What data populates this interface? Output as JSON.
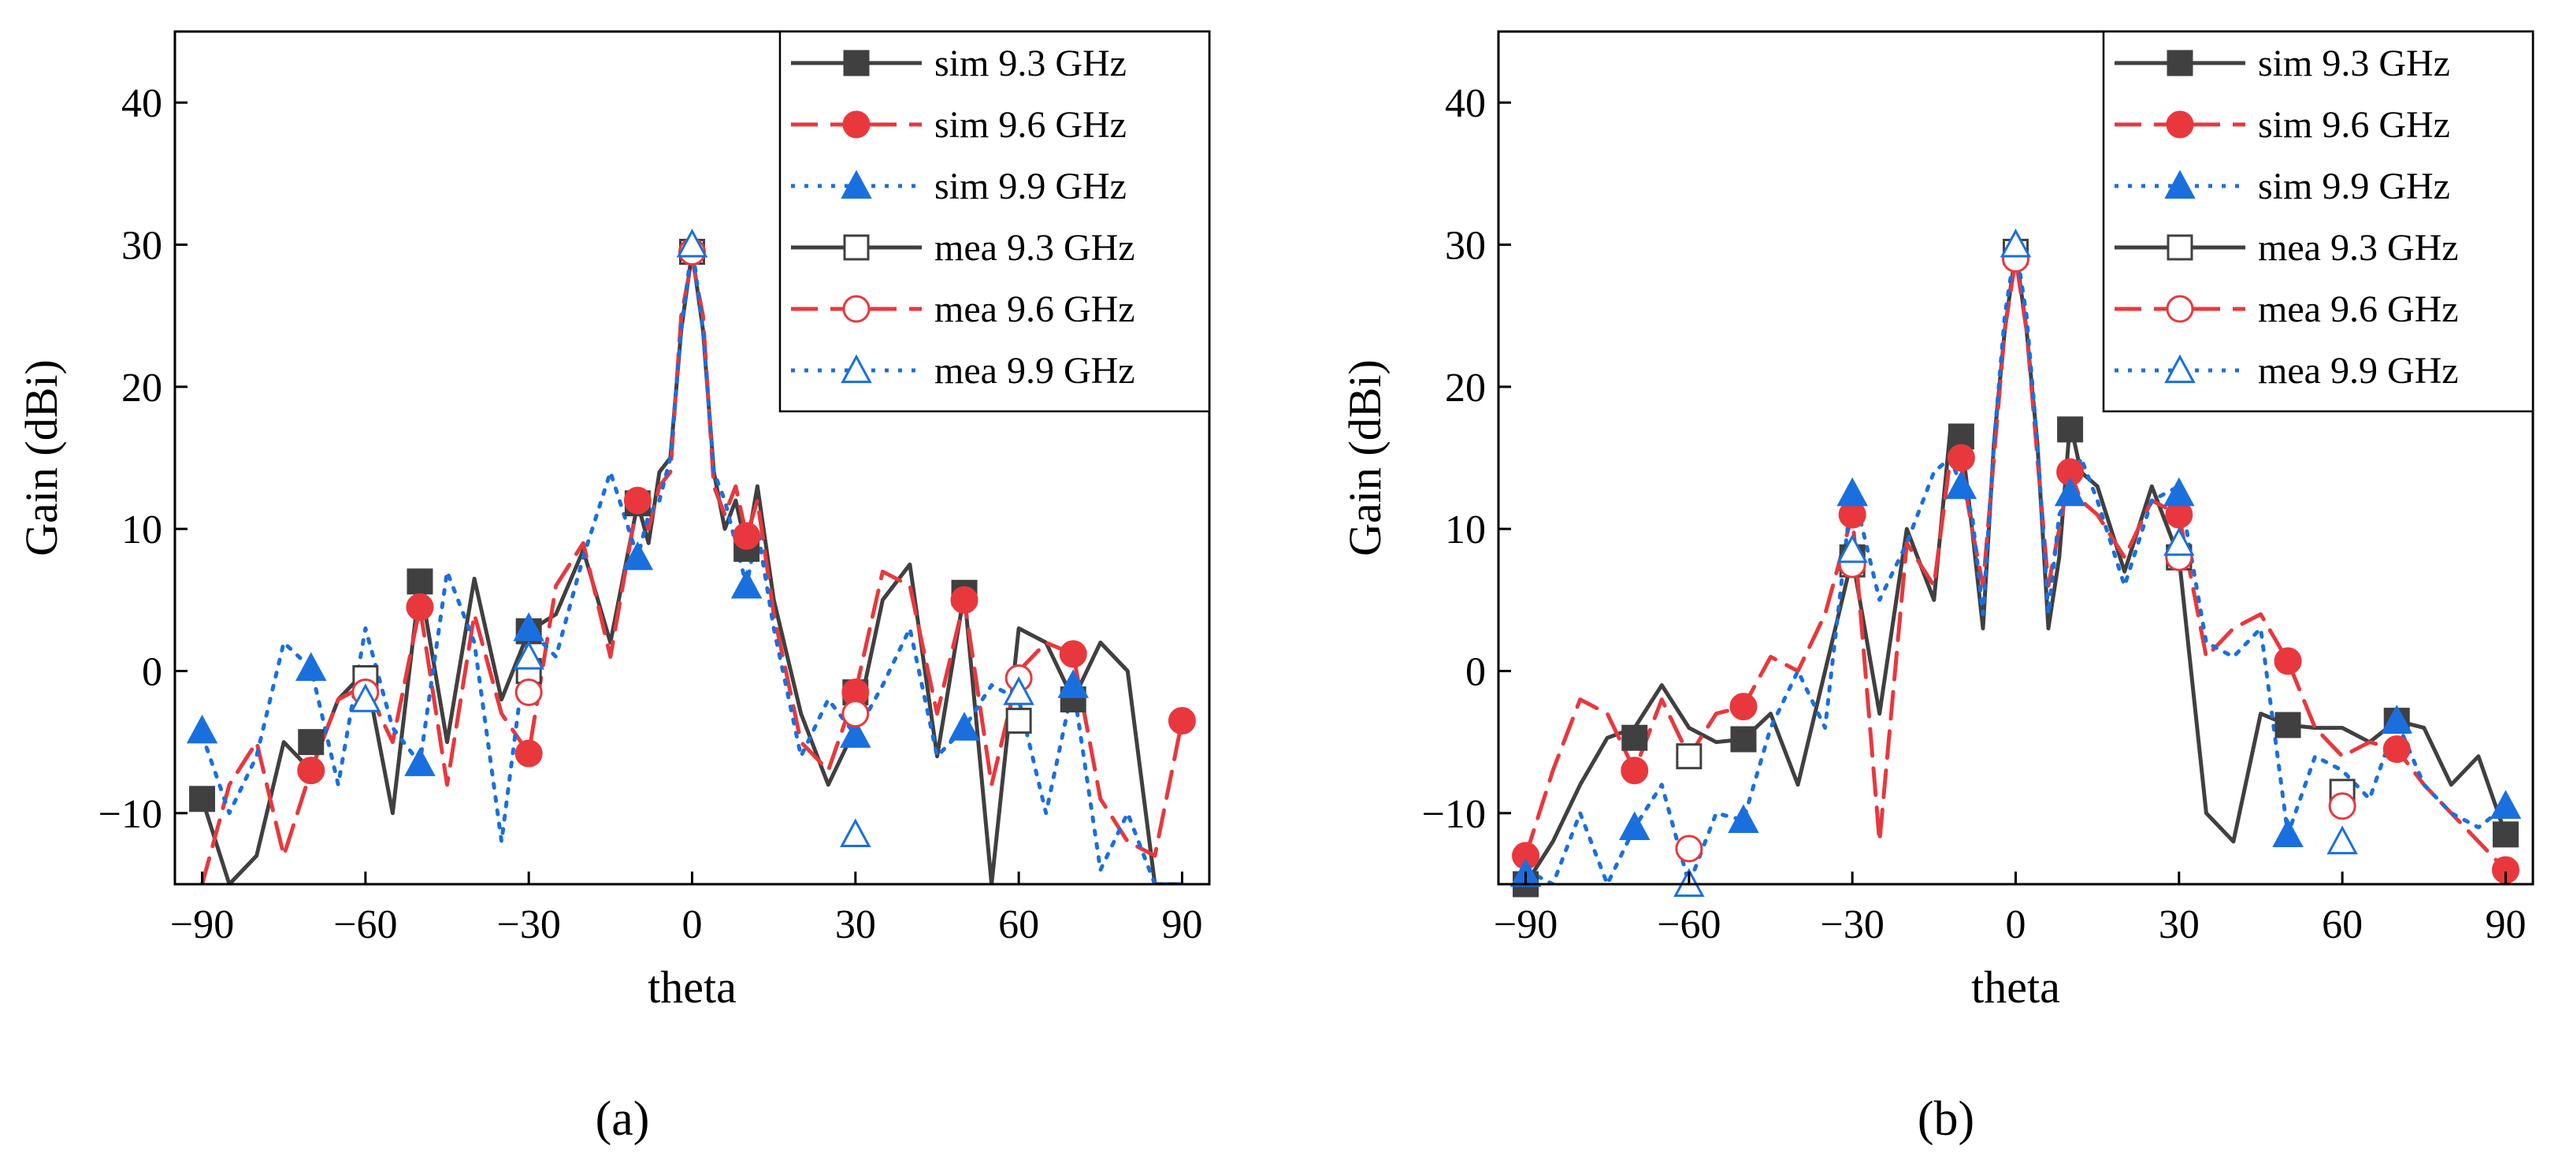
{
  "chart_data": [
    {
      "type": "line",
      "panel_label": "a",
      "xlabel": "theta",
      "ylabel": "Gain (dBi)",
      "xlim": [
        -95,
        95
      ],
      "ylim": [
        -15,
        45
      ],
      "xticks": [
        -90,
        -60,
        -30,
        0,
        30,
        60,
        90
      ],
      "yticks": [
        -10,
        0,
        10,
        20,
        30,
        40
      ],
      "legend_position": "top-right",
      "series": [
        {
          "name": "sim 9.3 GHz",
          "color": "#404040",
          "dash": "solid",
          "marker": "filled-square",
          "x": [
            -90,
            -85,
            -80,
            -75,
            -70,
            -65,
            -60,
            -55,
            -50,
            -45,
            -40,
            -35,
            -30,
            -25,
            -20,
            -15,
            -10,
            -8,
            -6,
            -4,
            -2,
            0,
            2,
            4,
            6,
            8,
            10,
            12,
            15,
            20,
            25,
            30,
            35,
            40,
            45,
            50,
            55,
            60,
            65,
            70,
            75,
            80,
            85,
            90
          ],
          "y": [
            -9,
            -15,
            -13,
            -5,
            -7,
            -2,
            0,
            -10,
            6.3,
            -5,
            6.5,
            -2,
            2.8,
            4,
            8.5,
            2,
            11.8,
            9,
            14,
            15,
            24,
            29.5,
            24,
            14,
            10,
            12,
            8.6,
            13,
            5,
            -3,
            -8,
            -4,
            5,
            7.5,
            -6,
            5.5,
            -15,
            3,
            2,
            -2,
            2,
            0,
            -15,
            -15
          ],
          "markers_x": [
            -90,
            -70,
            -50,
            -30,
            -10,
            10,
            30,
            50,
            70
          ],
          "markers_y": [
            -9,
            -5,
            6.3,
            2.8,
            11.8,
            8.6,
            -1.5,
            5.5,
            -2
          ]
        },
        {
          "name": "sim 9.6 GHz",
          "color": "#e8383d",
          "dash": "dashed",
          "marker": "filled-circle",
          "x": [
            -90,
            -85,
            -80,
            -75,
            -70,
            -65,
            -60,
            -55,
            -50,
            -45,
            -40,
            -35,
            -30,
            -25,
            -20,
            -15,
            -10,
            -8,
            -6,
            -4,
            -2,
            0,
            2,
            4,
            6,
            8,
            10,
            12,
            15,
            20,
            25,
            30,
            35,
            40,
            45,
            50,
            55,
            60,
            65,
            70,
            75,
            80,
            85,
            90
          ],
          "y": [
            -15,
            -8,
            -5,
            -13,
            -7,
            -2,
            -1,
            -5,
            4.5,
            -8,
            4,
            -3,
            -5.8,
            6,
            9,
            1,
            12,
            10,
            13,
            14,
            25,
            29,
            25,
            13,
            11,
            13,
            9.5,
            12,
            4,
            -5,
            -7,
            -1.5,
            7,
            6,
            -3,
            5,
            -8,
            0,
            2,
            1.2,
            -9,
            -12,
            -13,
            -3.5
          ],
          "markers_x": [
            -70,
            -50,
            -30,
            -10,
            10,
            30,
            50,
            70,
            90
          ],
          "markers_y": [
            -7,
            4.5,
            -5.8,
            12,
            9.5,
            -1.5,
            5,
            1.2,
            -3.5
          ]
        },
        {
          "name": "sim 9.9 GHz",
          "color": "#1a6fdf",
          "dash": "dotted",
          "marker": "filled-triangle",
          "x": [
            -90,
            -85,
            -80,
            -75,
            -70,
            -65,
            -60,
            -55,
            -50,
            -45,
            -40,
            -35,
            -30,
            -25,
            -20,
            -15,
            -10,
            -8,
            -6,
            -4,
            -2,
            0,
            2,
            4,
            6,
            8,
            10,
            12,
            15,
            20,
            25,
            30,
            35,
            40,
            45,
            50,
            55,
            60,
            65,
            70,
            75,
            80,
            85,
            90
          ],
          "y": [
            -4.5,
            -10,
            -6,
            2,
            0.2,
            -8,
            3,
            -4,
            -6.5,
            7,
            2,
            -12,
            3,
            1,
            8,
            14,
            8,
            11,
            12,
            15,
            24,
            30,
            24,
            14,
            12,
            9,
            6,
            10,
            3,
            -6,
            -2,
            -4.5,
            -1,
            3,
            -6,
            -4,
            -1,
            -2,
            -10,
            -1,
            -14,
            -10,
            -15,
            -15
          ],
          "markers_x": [
            -90,
            -70,
            -50,
            -30,
            -10,
            10,
            30,
            50,
            70
          ],
          "markers_y": [
            -4.2,
            0.2,
            -6.5,
            3,
            8,
            6,
            -4.5,
            -4,
            -1
          ]
        },
        {
          "name": "mea 9.3 GHz",
          "color": "#404040",
          "dash": "solid",
          "marker": "open-square",
          "x": [],
          "y": [],
          "markers_x": [
            -60,
            -30,
            0,
            60
          ],
          "markers_y": [
            -0.5,
            0,
            29.5,
            -3.5
          ]
        },
        {
          "name": "mea 9.6 GHz",
          "color": "#e8383d",
          "dash": "dashed",
          "marker": "open-circle",
          "x": [],
          "y": [],
          "markers_x": [
            -60,
            -30,
            0,
            30,
            60
          ],
          "markers_y": [
            -1.5,
            -1.5,
            29.5,
            -3,
            -0.5
          ]
        },
        {
          "name": "mea 9.9 GHz",
          "color": "#1a6fdf",
          "dash": "dotted",
          "marker": "open-triangle",
          "x": [],
          "y": [],
          "markers_x": [
            -60,
            -30,
            0,
            30,
            60
          ],
          "markers_y": [
            -2,
            1,
            30,
            -11.5,
            -1.5
          ]
        }
      ]
    },
    {
      "type": "line",
      "panel_label": "b",
      "xlabel": "theta",
      "ylabel": "Gain (dBi)",
      "xlim": [
        -95,
        95
      ],
      "ylim": [
        -15,
        45
      ],
      "xticks": [
        -90,
        -60,
        -30,
        0,
        30,
        60,
        90
      ],
      "yticks": [
        -10,
        0,
        10,
        20,
        30,
        40
      ],
      "legend_position": "top-right",
      "series": [
        {
          "name": "sim 9.3 GHz",
          "color": "#404040",
          "dash": "solid",
          "marker": "filled-square",
          "x": [
            -90,
            -85,
            -80,
            -75,
            -70,
            -65,
            -60,
            -55,
            -50,
            -45,
            -40,
            -35,
            -30,
            -25,
            -20,
            -15,
            -12,
            -10,
            -8,
            -6,
            -4,
            -2,
            0,
            2,
            4,
            6,
            8,
            10,
            12,
            15,
            20,
            25,
            30,
            35,
            40,
            45,
            50,
            55,
            60,
            65,
            70,
            75,
            80,
            85,
            90
          ],
          "y": [
            -15,
            -12,
            -8,
            -4.7,
            -4,
            -1,
            -4,
            -5,
            -4.8,
            -3,
            -8,
            0,
            8,
            -3,
            10,
            5,
            17,
            16.5,
            10,
            3,
            16,
            24,
            29.5,
            24,
            16,
            3,
            8,
            17.5,
            14,
            13,
            7,
            13,
            8,
            -10,
            -12,
            -3,
            -3.8,
            -4,
            -4,
            -5,
            -3.5,
            -4,
            -8,
            -6,
            -11.5
          ],
          "markers_x": [
            -90,
            -70,
            -50,
            -30,
            -10,
            10,
            30,
            50,
            70,
            90
          ],
          "markers_y": [
            -15,
            -4.7,
            -4.8,
            8,
            16.5,
            17,
            8,
            -3.8,
            -3.5,
            -11.5
          ]
        },
        {
          "name": "sim 9.6 GHz",
          "color": "#e8383d",
          "dash": "dashed",
          "marker": "filled-circle",
          "x": [
            -90,
            -85,
            -80,
            -75,
            -70,
            -65,
            -60,
            -55,
            -50,
            -45,
            -40,
            -35,
            -30,
            -25,
            -20,
            -15,
            -12,
            -10,
            -8,
            -6,
            -4,
            -2,
            0,
            2,
            4,
            6,
            8,
            10,
            12,
            15,
            20,
            25,
            30,
            35,
            40,
            45,
            50,
            55,
            60,
            65,
            70,
            75,
            80,
            85,
            90
          ],
          "y": [
            -13,
            -7,
            -2,
            -3,
            -7,
            -2,
            -6,
            -3,
            -2.5,
            1,
            0,
            4,
            11,
            -12,
            9,
            6,
            15,
            14.5,
            10,
            6,
            15,
            24,
            29,
            24,
            15,
            6,
            10,
            14,
            12,
            11,
            8,
            12,
            11,
            1,
            3,
            4,
            0.7,
            -4,
            -6,
            -5,
            -5.5,
            -8,
            -10,
            -12,
            -14
          ],
          "markers_x": [
            -90,
            -70,
            -50,
            -30,
            -10,
            10,
            30,
            50,
            70,
            90
          ],
          "markers_y": [
            -13,
            -7,
            -2.5,
            11,
            15,
            14,
            11,
            0.7,
            -5.5,
            -14
          ]
        },
        {
          "name": "sim 9.9 GHz",
          "color": "#1a6fdf",
          "dash": "dotted",
          "marker": "filled-triangle",
          "x": [
            -90,
            -85,
            -80,
            -75,
            -70,
            -65,
            -60,
            -55,
            -50,
            -45,
            -40,
            -35,
            -30,
            -25,
            -20,
            -15,
            -12,
            -10,
            -8,
            -6,
            -4,
            -2,
            0,
            2,
            4,
            6,
            8,
            10,
            12,
            15,
            20,
            25,
            30,
            35,
            40,
            45,
            50,
            55,
            60,
            65,
            70,
            75,
            80,
            85,
            90
          ],
          "y": [
            -14,
            -15,
            -10,
            -15,
            -11,
            -8,
            -15,
            -10,
            -10.5,
            -4,
            0,
            -4,
            13,
            5,
            9,
            14,
            15,
            13,
            11,
            4,
            16,
            25,
            30,
            25,
            16,
            4,
            11,
            12.5,
            15,
            12,
            6,
            12,
            13,
            2,
            1,
            3,
            -11.5,
            -6,
            -7,
            -9,
            -3.5,
            -8,
            -10,
            -11,
            -9.5
          ],
          "markers_x": [
            -90,
            -70,
            -50,
            -30,
            -10,
            10,
            30,
            50,
            70,
            90
          ],
          "markers_y": [
            -14.3,
            -11,
            -10.5,
            12.5,
            13,
            12.5,
            12.5,
            -11.5,
            -3.5,
            -9.5
          ]
        },
        {
          "name": "mea 9.3 GHz",
          "color": "#404040",
          "dash": "solid",
          "marker": "open-square",
          "x": [],
          "y": [],
          "markers_x": [
            -60,
            -30,
            0,
            30,
            60
          ],
          "markers_y": [
            -6,
            7.5,
            29.5,
            8,
            -8.5
          ]
        },
        {
          "name": "mea 9.6 GHz",
          "color": "#e8383d",
          "dash": "dashed",
          "marker": "open-circle",
          "x": [],
          "y": [],
          "markers_x": [
            -60,
            -30,
            0,
            30,
            60
          ],
          "markers_y": [
            -12.5,
            7.5,
            29,
            8,
            -9.5
          ]
        },
        {
          "name": "mea 9.9 GHz",
          "color": "#1a6fdf",
          "dash": "dotted",
          "marker": "open-triangle",
          "x": [],
          "y": [],
          "markers_x": [
            -60,
            -30,
            0,
            30,
            60
          ],
          "markers_y": [
            -15,
            8.5,
            30,
            9,
            -12
          ]
        }
      ]
    }
  ],
  "captions": {
    "a": "(a)",
    "b": "(b)"
  }
}
